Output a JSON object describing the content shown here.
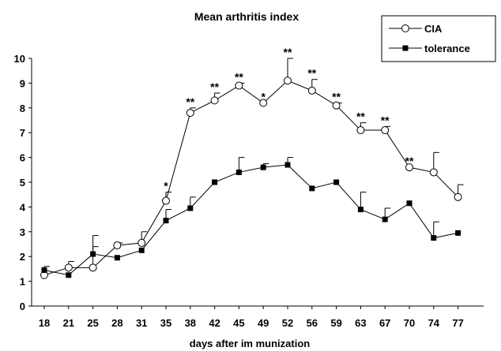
{
  "chart_data": {
    "type": "line",
    "title": "Mean arthritis index",
    "xlabel": "days after im munization",
    "ylabel": "",
    "ylim": [
      0,
      10
    ],
    "yticks": [
      0,
      1,
      2,
      3,
      4,
      5,
      6,
      7,
      8,
      9,
      10
    ],
    "categories": [
      "18",
      "21",
      "25",
      "28",
      "31",
      "35",
      "38",
      "42",
      "45",
      "49",
      "52",
      "56",
      "59",
      "63",
      "67",
      "70",
      "74",
      "77"
    ],
    "legend_position": "top-right",
    "grid": false,
    "series": [
      {
        "name": "CIA",
        "marker": "open-circle",
        "values": [
          1.25,
          1.55,
          1.55,
          2.45,
          2.55,
          4.25,
          7.8,
          8.3,
          8.9,
          8.2,
          9.1,
          8.7,
          8.1,
          7.1,
          7.1,
          5.6,
          5.4,
          4.4
        ],
        "error": [
          0,
          0.25,
          1.3,
          0.1,
          0.45,
          0.35,
          0.2,
          0.3,
          0.1,
          0,
          0.9,
          0.45,
          0.1,
          0.3,
          0.15,
          0,
          0.8,
          0.5
        ]
      },
      {
        "name": "tolerance",
        "marker": "filled-square",
        "values": [
          1.45,
          1.25,
          2.1,
          1.95,
          2.25,
          3.45,
          3.95,
          5.0,
          5.4,
          5.6,
          5.7,
          4.75,
          5.0,
          3.9,
          3.5,
          4.15,
          2.75,
          2.95
        ],
        "error": [
          0.15,
          0,
          0.3,
          0,
          0,
          0.45,
          0.45,
          0,
          0.6,
          0.15,
          0.3,
          0,
          0,
          0.7,
          0.45,
          0,
          0.65,
          0
        ]
      }
    ],
    "annotations": [
      "",
      "",
      "",
      "",
      "",
      "*",
      "**",
      "**",
      "**",
      "*",
      "**",
      "**",
      "**",
      "**",
      "**",
      "**",
      "",
      ""
    ]
  }
}
